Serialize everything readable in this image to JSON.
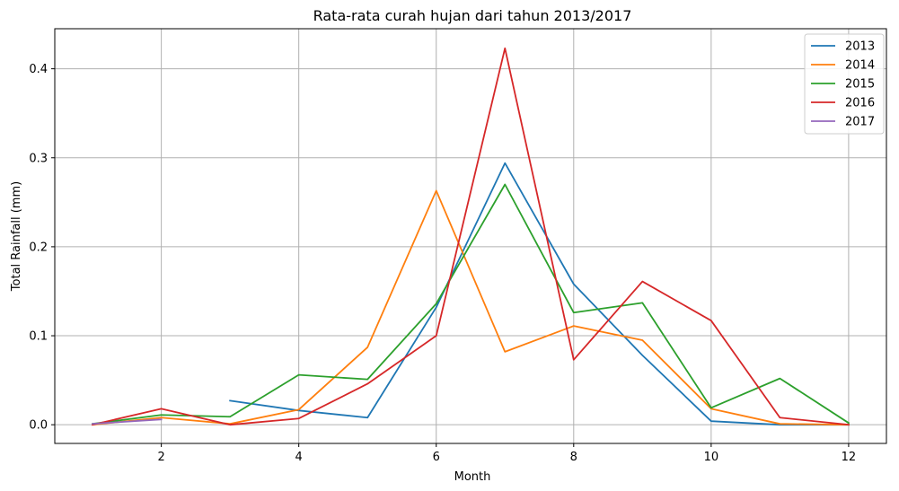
{
  "chart_data": {
    "type": "line",
    "title": "Rata-rata curah hujan dari tahun 2013/2017",
    "xlabel": "Month",
    "ylabel": "Total Rainfall (mm)",
    "xlim": [
      0.45,
      12.55
    ],
    "ylim": [
      -0.021,
      0.445
    ],
    "xticks": [
      2,
      4,
      6,
      8,
      10,
      12
    ],
    "yticks": [
      0.0,
      0.1,
      0.2,
      0.3,
      0.4
    ],
    "xtick_labels": [
      "2",
      "4",
      "6",
      "8",
      "10",
      "12"
    ],
    "ytick_labels": [
      "0.0",
      "0.1",
      "0.2",
      "0.3",
      "0.4"
    ],
    "grid": true,
    "legend_position": "top-right",
    "series": [
      {
        "name": "2013",
        "color": "#1f77b4",
        "points": [
          [
            3,
            0.027
          ],
          [
            4,
            0.016
          ],
          [
            5,
            0.008
          ],
          [
            6,
            0.132
          ],
          [
            7,
            0.294
          ],
          [
            8,
            0.158
          ],
          [
            9,
            0.078
          ],
          [
            10,
            0.004
          ],
          [
            11,
            0.0
          ],
          [
            12,
            0.0
          ]
        ]
      },
      {
        "name": "2014",
        "color": "#ff7f0e",
        "points": [
          [
            1,
            0.0
          ],
          [
            2,
            0.008
          ],
          [
            3,
            0.001
          ],
          [
            4,
            0.017
          ],
          [
            5,
            0.087
          ],
          [
            6,
            0.263
          ],
          [
            7,
            0.082
          ],
          [
            8,
            0.111
          ],
          [
            9,
            0.095
          ],
          [
            10,
            0.018
          ],
          [
            11,
            0.001
          ],
          [
            12,
            0.0
          ]
        ]
      },
      {
        "name": "2015",
        "color": "#2ca02c",
        "points": [
          [
            1,
            0.001
          ],
          [
            2,
            0.011
          ],
          [
            3,
            0.009
          ],
          [
            4,
            0.056
          ],
          [
            5,
            0.051
          ],
          [
            6,
            0.136
          ],
          [
            7,
            0.27
          ],
          [
            8,
            0.126
          ],
          [
            9,
            0.137
          ],
          [
            10,
            0.019
          ],
          [
            11,
            0.052
          ],
          [
            12,
            0.002
          ]
        ]
      },
      {
        "name": "2016",
        "color": "#d62728",
        "points": [
          [
            1,
            0.0
          ],
          [
            2,
            0.018
          ],
          [
            3,
            0.0
          ],
          [
            4,
            0.007
          ],
          [
            5,
            0.046
          ],
          [
            6,
            0.1
          ],
          [
            7,
            0.423
          ],
          [
            8,
            0.073
          ],
          [
            9,
            0.161
          ],
          [
            10,
            0.117
          ],
          [
            11,
            0.008
          ],
          [
            12,
            0.0
          ]
        ]
      },
      {
        "name": "2017",
        "color": "#9467bd",
        "points": [
          [
            1,
            0.001
          ],
          [
            2,
            0.006
          ]
        ]
      }
    ]
  }
}
